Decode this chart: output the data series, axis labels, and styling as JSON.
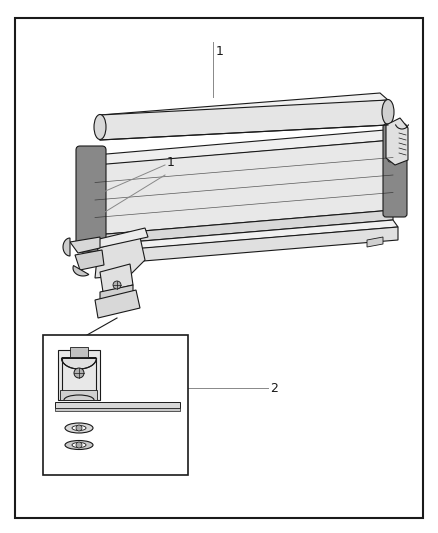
{
  "bg_color": "#ffffff",
  "border_color": "#1a1a1a",
  "line_color": "#1a1a1a",
  "light_fill": "#f5f5f5",
  "mid_fill": "#e8e8e8",
  "dark_fill": "#d0d0d0",
  "darker_fill": "#b8b8b8",
  "label1": "1",
  "label2": "2",
  "fig_width": 4.38,
  "fig_height": 5.33,
  "dpi": 100
}
